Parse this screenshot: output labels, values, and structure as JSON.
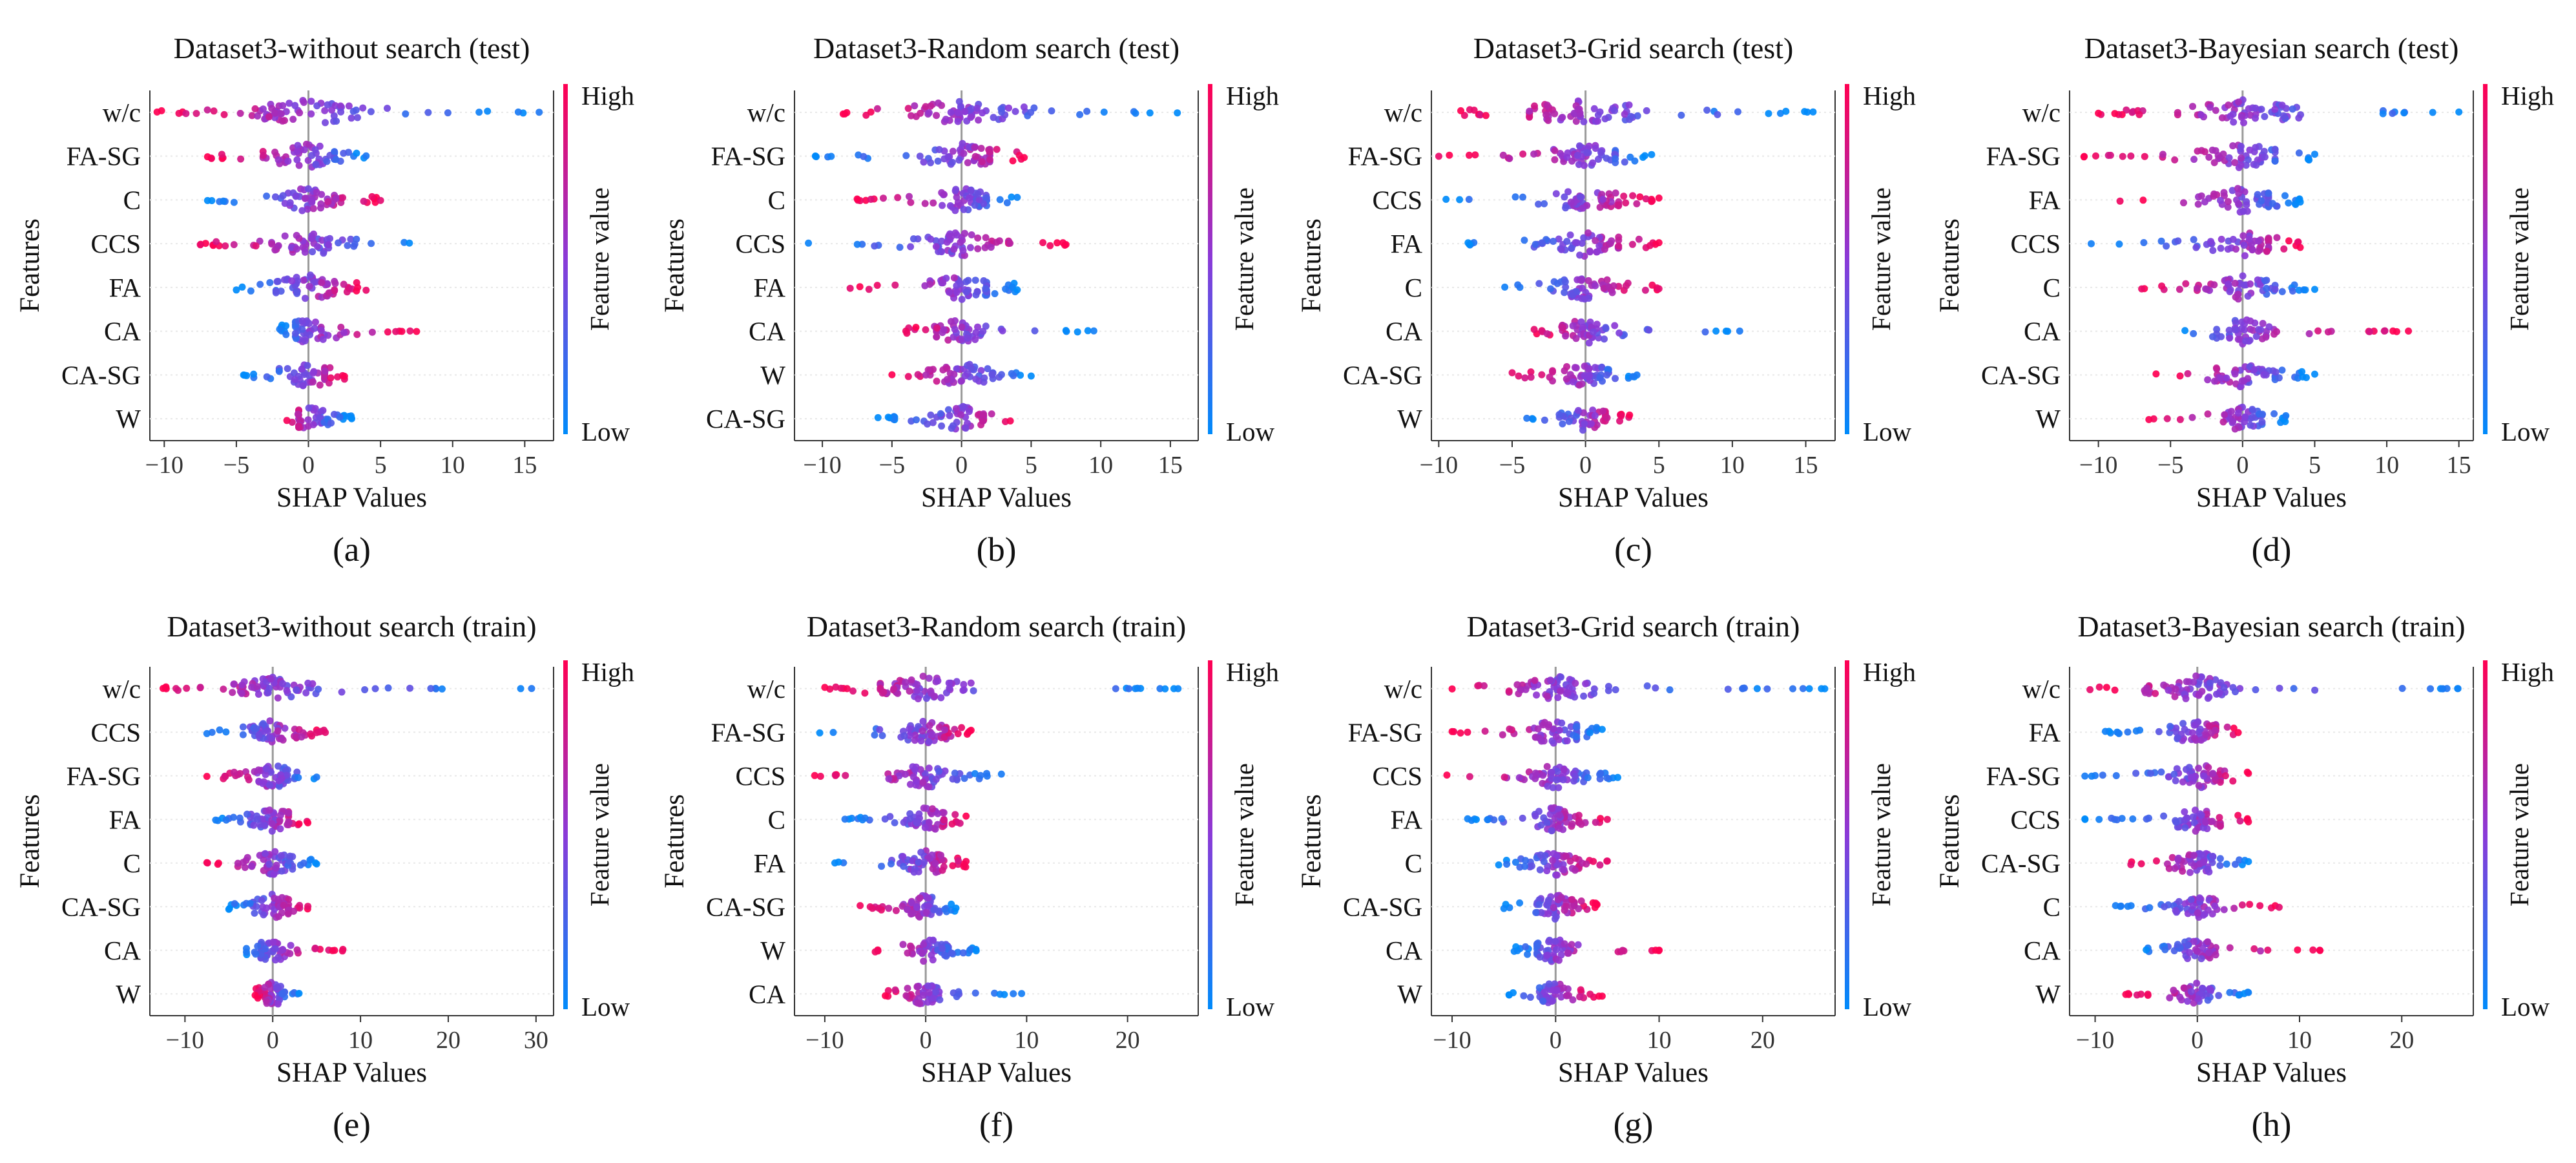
{
  "figure": {
    "y_axis_label": "Features",
    "x_axis_label": "SHAP Values",
    "colorbar_title": "Feature value",
    "colorbar_high": "High",
    "colorbar_low": "Low",
    "colors": {
      "high": "#ff0052",
      "mid": "#8a3ad8",
      "low": "#008bfb"
    }
  },
  "chart_data": [
    {
      "type": "scatter",
      "kind": "shap-beeswarm",
      "title": "Dataset3-without search (test)",
      "caption": "(a)",
      "xlabel": "SHAP Values",
      "ylabel": "Features",
      "xlim": [
        -11,
        17
      ],
      "xticks": [
        -10,
        -5,
        0,
        5,
        10,
        15
      ],
      "features": [
        {
          "name": "w/c",
          "range": [
            -10.5,
            16
          ],
          "width": 2.2
        },
        {
          "name": "FA-SG",
          "range": [
            -7,
            4
          ],
          "width": 1.6
        },
        {
          "name": "C",
          "range": [
            -7,
            5
          ],
          "width": 1.3
        },
        {
          "name": "CCS",
          "range": [
            -7.5,
            7
          ],
          "width": 1.4
        },
        {
          "name": "FA",
          "range": [
            -5,
            4
          ],
          "width": 1.4
        },
        {
          "name": "CA",
          "range": [
            -2,
            7.5
          ],
          "width": 1.2
        },
        {
          "name": "CA-SG",
          "range": [
            -4.5,
            2.5
          ],
          "width": 1.3
        },
        {
          "name": "W",
          "range": [
            -1.5,
            3
          ],
          "width": 0.9
        }
      ]
    },
    {
      "type": "scatter",
      "kind": "shap-beeswarm",
      "title": "Dataset3-Random search (test)",
      "caption": "(b)",
      "xlabel": "SHAP Values",
      "ylabel": "Features",
      "xlim": [
        -12,
        17
      ],
      "xticks": [
        -10,
        -5,
        0,
        5,
        10,
        15
      ],
      "features": [
        {
          "name": "w/c",
          "range": [
            -8.5,
            15.5
          ],
          "width": 2.1
        },
        {
          "name": "FA-SG",
          "range": [
            -10.5,
            4.5
          ],
          "width": 1.6
        },
        {
          "name": "C",
          "range": [
            -7.5,
            4
          ],
          "width": 1.3
        },
        {
          "name": "CCS",
          "range": [
            -11,
            7.5
          ],
          "width": 1.5
        },
        {
          "name": "FA",
          "range": [
            -8,
            4
          ],
          "width": 1.4
        },
        {
          "name": "CA",
          "range": [
            -4,
            9.5
          ],
          "width": 1.2
        },
        {
          "name": "W",
          "range": [
            -5,
            5
          ],
          "width": 1.2
        },
        {
          "name": "CA-SG",
          "range": [
            -6,
            3.5
          ],
          "width": 1.2
        }
      ]
    },
    {
      "type": "scatter",
      "kind": "shap-beeswarm",
      "title": "Dataset3-Grid search (test)",
      "caption": "(c)",
      "xlabel": "SHAP Values",
      "ylabel": "Features",
      "xlim": [
        -10.5,
        17
      ],
      "xticks": [
        -10,
        -5,
        0,
        5,
        10,
        15
      ],
      "features": [
        {
          "name": "w/c",
          "range": [
            -8.5,
            15.5
          ],
          "width": 2.3
        },
        {
          "name": "FA-SG",
          "range": [
            -10,
            4.5
          ],
          "width": 1.6
        },
        {
          "name": "CCS",
          "range": [
            -9.5,
            5
          ],
          "width": 1.4
        },
        {
          "name": "FA",
          "range": [
            -8,
            5
          ],
          "width": 1.4
        },
        {
          "name": "C",
          "range": [
            -5.5,
            5
          ],
          "width": 1.3
        },
        {
          "name": "CA",
          "range": [
            -3.5,
            10.5
          ],
          "width": 1.2
        },
        {
          "name": "CA-SG",
          "range": [
            -5,
            3.5
          ],
          "width": 1.2
        },
        {
          "name": "W",
          "range": [
            -4,
            3
          ],
          "width": 1.0
        }
      ]
    },
    {
      "type": "scatter",
      "kind": "shap-beeswarm",
      "title": "Dataset3-Bayesian search (test)",
      "caption": "(d)",
      "xlabel": "SHAP Values",
      "ylabel": "Features",
      "xlim": [
        -12,
        16
      ],
      "xticks": [
        -10,
        -5,
        0,
        5,
        10,
        15
      ],
      "features": [
        {
          "name": "w/c",
          "range": [
            -10,
            15
          ],
          "width": 2.2
        },
        {
          "name": "FA-SG",
          "range": [
            -11,
            5
          ],
          "width": 1.6
        },
        {
          "name": "FA",
          "range": [
            -8.5,
            4
          ],
          "width": 1.5
        },
        {
          "name": "CCS",
          "range": [
            -10.5,
            4
          ],
          "width": 1.4
        },
        {
          "name": "C",
          "range": [
            -7,
            5
          ],
          "width": 1.3
        },
        {
          "name": "CA",
          "range": [
            -4,
            11.5
          ],
          "width": 1.2
        },
        {
          "name": "CA-SG",
          "range": [
            -6,
            5
          ],
          "width": 1.2
        },
        {
          "name": "W",
          "range": [
            -6.5,
            3
          ],
          "width": 1.0
        }
      ]
    },
    {
      "type": "scatter",
      "kind": "shap-beeswarm",
      "title": "Dataset3-without search (train)",
      "caption": "(e)",
      "xlabel": "SHAP Values",
      "ylabel": "Features",
      "xlim": [
        -14,
        32
      ],
      "xticks": [
        -10,
        0,
        10,
        20,
        30
      ],
      "features": [
        {
          "name": "w/c",
          "range": [
            -12.5,
            29.5
          ],
          "width": 2.4
        },
        {
          "name": "CCS",
          "range": [
            -7.5,
            6
          ],
          "width": 1.6
        },
        {
          "name": "FA-SG",
          "range": [
            -7.5,
            5
          ],
          "width": 1.6
        },
        {
          "name": "FA",
          "range": [
            -6.5,
            4
          ],
          "width": 1.4
        },
        {
          "name": "C",
          "range": [
            -7.5,
            5
          ],
          "width": 1.4
        },
        {
          "name": "CA-SG",
          "range": [
            -5,
            4
          ],
          "width": 1.3
        },
        {
          "name": "CA",
          "range": [
            -3,
            8
          ],
          "width": 1.2
        },
        {
          "name": "W",
          "range": [
            -2,
            3
          ],
          "width": 1.0
        }
      ]
    },
    {
      "type": "scatter",
      "kind": "shap-beeswarm",
      "title": "Dataset3-Random search (train)",
      "caption": "(f)",
      "xlabel": "SHAP Values",
      "ylabel": "Features",
      "xlim": [
        -13,
        27
      ],
      "xticks": [
        -10,
        0,
        10,
        20
      ],
      "features": [
        {
          "name": "w/c",
          "range": [
            -10,
            25
          ],
          "width": 2.3
        },
        {
          "name": "FA-SG",
          "range": [
            -10.5,
            4.5
          ],
          "width": 1.6
        },
        {
          "name": "CCS",
          "range": [
            -11,
            7.5
          ],
          "width": 1.5
        },
        {
          "name": "C",
          "range": [
            -8,
            4
          ],
          "width": 1.4
        },
        {
          "name": "FA",
          "range": [
            -9,
            4
          ],
          "width": 1.4
        },
        {
          "name": "CA-SG",
          "range": [
            -6.5,
            3
          ],
          "width": 1.3
        },
        {
          "name": "W",
          "range": [
            -5,
            5
          ],
          "width": 1.2
        },
        {
          "name": "CA",
          "range": [
            -4,
            9.5
          ],
          "width": 1.1
        }
      ]
    },
    {
      "type": "scatter",
      "kind": "shap-beeswarm",
      "title": "Dataset3-Grid search (train)",
      "caption": "(g)",
      "xlabel": "SHAP Values",
      "ylabel": "Features",
      "xlim": [
        -12,
        27
      ],
      "xticks": [
        -10,
        0,
        10,
        20
      ],
      "features": [
        {
          "name": "w/c",
          "range": [
            -10,
            26
          ],
          "width": 2.3
        },
        {
          "name": "FA-SG",
          "range": [
            -10,
            4.5
          ],
          "width": 1.6
        },
        {
          "name": "CCS",
          "range": [
            -10.5,
            6
          ],
          "width": 1.5
        },
        {
          "name": "FA",
          "range": [
            -8.5,
            5
          ],
          "width": 1.4
        },
        {
          "name": "C",
          "range": [
            -5.5,
            5
          ],
          "width": 1.3
        },
        {
          "name": "CA-SG",
          "range": [
            -5,
            4
          ],
          "width": 1.3
        },
        {
          "name": "CA",
          "range": [
            -4,
            10
          ],
          "width": 1.2
        },
        {
          "name": "W",
          "range": [
            -4.5,
            4.5
          ],
          "width": 1.1
        }
      ]
    },
    {
      "type": "scatter",
      "kind": "shap-beeswarm",
      "title": "Dataset3-Bayesian search (train)",
      "caption": "(h)",
      "xlabel": "SHAP Values",
      "ylabel": "Features",
      "xlim": [
        -12.5,
        27
      ],
      "xticks": [
        -10,
        0,
        10,
        20
      ],
      "features": [
        {
          "name": "w/c",
          "range": [
            -10.5,
            25.5
          ],
          "width": 2.3
        },
        {
          "name": "FA",
          "range": [
            -9,
            4
          ],
          "width": 1.5
        },
        {
          "name": "FA-SG",
          "range": [
            -11,
            5
          ],
          "width": 1.6
        },
        {
          "name": "CCS",
          "range": [
            -11,
            5
          ],
          "width": 1.5
        },
        {
          "name": "CA-SG",
          "range": [
            -6.5,
            5
          ],
          "width": 1.3
        },
        {
          "name": "C",
          "range": [
            -8,
            8
          ],
          "width": 1.3
        },
        {
          "name": "CA",
          "range": [
            -5,
            12
          ],
          "width": 1.2
        },
        {
          "name": "W",
          "range": [
            -7,
            5
          ],
          "width": 1.0
        }
      ]
    }
  ]
}
